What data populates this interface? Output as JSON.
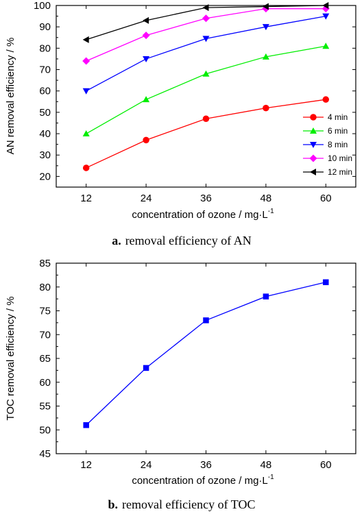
{
  "chart_data": [
    {
      "type": "line",
      "caption_label": "a.",
      "caption_text": "removal efficiency of AN",
      "xlabel": "concentration of ozone / mg·L",
      "xlabel_sup": "-1",
      "ylabel": "AN removal efficiency / %",
      "x": [
        12,
        24,
        36,
        48,
        60
      ],
      "xlim": [
        6,
        66
      ],
      "ylim": [
        15,
        100
      ],
      "xticks": [
        "12",
        "24",
        "36",
        "48",
        "60"
      ],
      "yticks": [
        "20",
        "30",
        "40",
        "50",
        "60",
        "70",
        "80",
        "90",
        "100"
      ],
      "grid": false,
      "legend_position": "bottom-right",
      "series": [
        {
          "name": "4 min",
          "values": [
            24,
            37,
            47,
            52,
            56
          ],
          "color": "#ff0000",
          "marker": "circle"
        },
        {
          "name": "6 min",
          "values": [
            40,
            56,
            68,
            76,
            81
          ],
          "color": "#00ee00",
          "marker": "triangle-up"
        },
        {
          "name": "8 min",
          "values": [
            60,
            75,
            84.5,
            90,
            95
          ],
          "color": "#0000ff",
          "marker": "triangle-down"
        },
        {
          "name": "10 min",
          "values": [
            74,
            86,
            94,
            98.5,
            98.5
          ],
          "color": "#ff00ff",
          "marker": "diamond"
        },
        {
          "name": "12 min",
          "values": [
            84,
            93,
            99,
            99.5,
            100
          ],
          "color": "#000000",
          "marker": "triangle-left"
        }
      ]
    },
    {
      "type": "line",
      "caption_label": "b.",
      "caption_text": "removal efficiency of TOC",
      "xlabel": "concentration of ozone / mg·L",
      "xlabel_sup": "-1",
      "ylabel": "TOC removal efficiency / %",
      "x": [
        12,
        24,
        36,
        48,
        60
      ],
      "xlim": [
        6,
        66
      ],
      "ylim": [
        45,
        85
      ],
      "xticks": [
        "12",
        "24",
        "36",
        "48",
        "60"
      ],
      "yticks": [
        "45",
        "50",
        "55",
        "60",
        "65",
        "70",
        "75",
        "80",
        "85"
      ],
      "grid": false,
      "series": [
        {
          "values": [
            51,
            63,
            73,
            78,
            81
          ],
          "color": "#0000ff",
          "marker": "square"
        }
      ]
    }
  ]
}
